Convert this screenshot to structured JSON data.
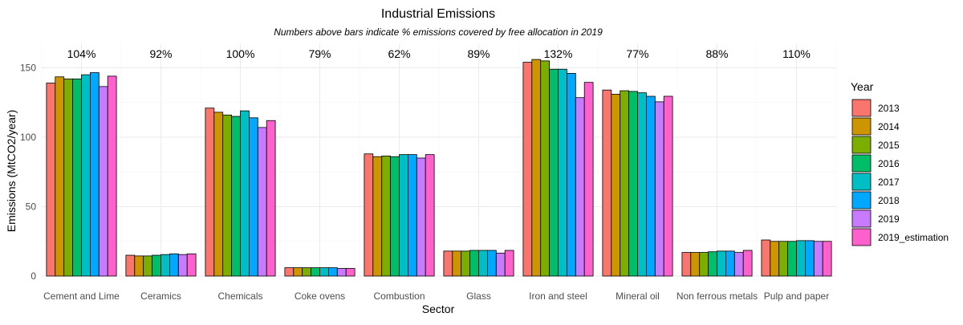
{
  "chart_data": {
    "type": "bar",
    "title": "Industrial Emissions",
    "subtitle": "Numbers above bars indicate % emissions covered by free allocation in 2019",
    "xlabel": "Sector",
    "ylabel": "Emissions (MtCO2/year)",
    "ylim": [
      0,
      160
    ],
    "yticks": [
      0,
      50,
      100,
      150
    ],
    "grid": true,
    "legend_title": "Year",
    "legend_position": "right",
    "categories": [
      "Cement and Lime",
      "Ceramics",
      "Chemicals",
      "Coke ovens",
      "Combustion",
      "Glass",
      "Iron and steel",
      "Mineral oil",
      "Non ferrous metals",
      "Pulp and paper"
    ],
    "annotations": [
      "104%",
      "92%",
      "100%",
      "79%",
      "62%",
      "89%",
      "132%",
      "77%",
      "88%",
      "110%"
    ],
    "series": [
      {
        "name": "2013",
        "color": "#F8766D",
        "values": [
          139,
          15,
          121,
          6,
          88,
          18,
          154,
          134,
          17,
          26
        ]
      },
      {
        "name": "2014",
        "color": "#CD9600",
        "values": [
          143.5,
          14.5,
          118,
          6,
          86,
          18,
          156,
          131,
          17,
          25
        ]
      },
      {
        "name": "2015",
        "color": "#7CAE00",
        "values": [
          142,
          14.5,
          116,
          6,
          86.5,
          18,
          155,
          133.5,
          17,
          25
        ]
      },
      {
        "name": "2016",
        "color": "#00BE67",
        "values": [
          142,
          15,
          115,
          6,
          86,
          18.5,
          149,
          133,
          17.5,
          25
        ]
      },
      {
        "name": "2017",
        "color": "#00BFC4",
        "values": [
          145,
          15.5,
          119,
          6,
          87.5,
          18.5,
          149,
          132,
          18,
          25.5
        ]
      },
      {
        "name": "2018",
        "color": "#00A9FF",
        "values": [
          146.5,
          16,
          114,
          6,
          87.5,
          18.5,
          146,
          129.5,
          18,
          25.5
        ]
      },
      {
        "name": "2019",
        "color": "#C77CFF",
        "values": [
          136.5,
          15.5,
          107,
          5.5,
          85,
          16.5,
          128.5,
          125.5,
          17,
          25
        ]
      },
      {
        "name": "2019_estimation",
        "color": "#FF61CC",
        "values": [
          144,
          16,
          112,
          5.5,
          87.5,
          18.5,
          139.5,
          129.5,
          18.5,
          25
        ]
      }
    ]
  }
}
